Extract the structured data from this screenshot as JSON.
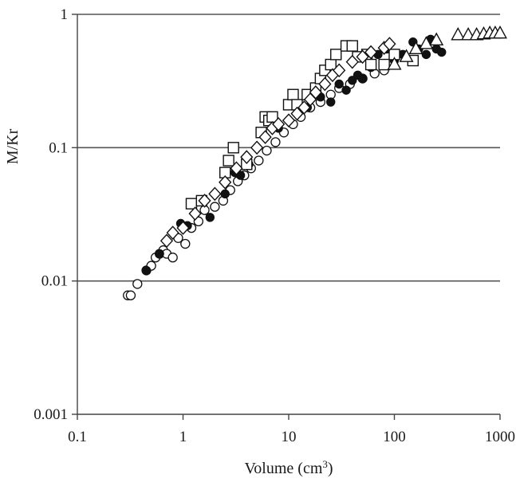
{
  "chart_data": {
    "type": "scatter",
    "title": "",
    "xlabel": "Volume (cm",
    "xlabel_sup": "3",
    "xlabel_close": ")",
    "ylabel": "M/Kr",
    "xscale": "log",
    "yscale": "log",
    "xlim": [
      0.1,
      1000
    ],
    "ylim": [
      0.001,
      1
    ],
    "grid": "horizontal major lines",
    "legend": "none",
    "xticks": [
      {
        "value": 0.1,
        "label": "0.1"
      },
      {
        "value": 1,
        "label": "1"
      },
      {
        "value": 10,
        "label": "10"
      },
      {
        "value": 100,
        "label": "100"
      },
      {
        "value": 1000,
        "label": "1000"
      }
    ],
    "yticks": [
      {
        "value": 0.001,
        "label": "0.001"
      },
      {
        "value": 0.01,
        "label": "0.01"
      },
      {
        "value": 0.1,
        "label": "0.1"
      },
      {
        "value": 1,
        "label": "1"
      }
    ],
    "series": [
      {
        "marker": "open-circle",
        "points": [
          [
            0.3,
            0.0078
          ],
          [
            0.32,
            0.0078
          ],
          [
            0.37,
            0.0095
          ],
          [
            0.45,
            0.012
          ],
          [
            0.5,
            0.013
          ],
          [
            0.55,
            0.015
          ],
          [
            0.6,
            0.016
          ],
          [
            0.65,
            0.017
          ],
          [
            0.7,
            0.016
          ],
          [
            0.8,
            0.015
          ],
          [
            0.9,
            0.021
          ],
          [
            1.05,
            0.019
          ],
          [
            1.2,
            0.025
          ],
          [
            1.4,
            0.028
          ],
          [
            1.6,
            0.034
          ],
          [
            2.0,
            0.036
          ],
          [
            2.4,
            0.04
          ],
          [
            2.8,
            0.048
          ],
          [
            3.3,
            0.056
          ],
          [
            3.8,
            0.062
          ],
          [
            4.4,
            0.07
          ],
          [
            5.2,
            0.08
          ],
          [
            6.2,
            0.095
          ],
          [
            7.5,
            0.11
          ],
          [
            9.0,
            0.13
          ],
          [
            11,
            0.15
          ],
          [
            13,
            0.17
          ],
          [
            16,
            0.2
          ],
          [
            20,
            0.22
          ],
          [
            25,
            0.25
          ],
          [
            30,
            0.28
          ],
          [
            38,
            0.3
          ],
          [
            50,
            0.33
          ],
          [
            65,
            0.36
          ],
          [
            80,
            0.38
          ]
        ]
      },
      {
        "marker": "filled-circle",
        "points": [
          [
            0.45,
            0.012
          ],
          [
            0.6,
            0.016
          ],
          [
            0.95,
            0.027
          ],
          [
            1.1,
            0.026
          ],
          [
            1.8,
            0.03
          ],
          [
            2.5,
            0.045
          ],
          [
            3.1,
            0.065
          ],
          [
            3.5,
            0.062
          ],
          [
            4.2,
            0.075
          ],
          [
            5.0,
            0.1
          ],
          [
            6.0,
            0.12
          ],
          [
            8.0,
            0.14
          ],
          [
            12,
            0.2
          ],
          [
            15,
            0.2
          ],
          [
            20,
            0.24
          ],
          [
            25,
            0.22
          ],
          [
            30,
            0.3
          ],
          [
            35,
            0.27
          ],
          [
            40,
            0.32
          ],
          [
            45,
            0.35
          ],
          [
            50,
            0.33
          ],
          [
            60,
            0.4
          ],
          [
            70,
            0.5
          ],
          [
            85,
            0.55
          ],
          [
            100,
            0.45
          ],
          [
            120,
            0.5
          ],
          [
            150,
            0.62
          ],
          [
            170,
            0.55
          ],
          [
            200,
            0.5
          ],
          [
            220,
            0.65
          ],
          [
            250,
            0.55
          ],
          [
            280,
            0.52
          ]
        ]
      },
      {
        "marker": "open-square",
        "points": [
          [
            1.2,
            0.038
          ],
          [
            1.5,
            0.04
          ],
          [
            2.5,
            0.065
          ],
          [
            2.7,
            0.08
          ],
          [
            3.0,
            0.1
          ],
          [
            4.0,
            0.075
          ],
          [
            5.5,
            0.13
          ],
          [
            6.0,
            0.17
          ],
          [
            6.5,
            0.16
          ],
          [
            7.0,
            0.17
          ],
          [
            10,
            0.21
          ],
          [
            11,
            0.25
          ],
          [
            12,
            0.21
          ],
          [
            15,
            0.25
          ],
          [
            18,
            0.28
          ],
          [
            20,
            0.33
          ],
          [
            22,
            0.38
          ],
          [
            25,
            0.42
          ],
          [
            28,
            0.5
          ],
          [
            35,
            0.58
          ],
          [
            40,
            0.58
          ],
          [
            45,
            0.48
          ],
          [
            55,
            0.5
          ],
          [
            60,
            0.42
          ],
          [
            80,
            0.42
          ],
          [
            100,
            0.5
          ],
          [
            150,
            0.45
          ]
        ]
      },
      {
        "marker": "open-diamond",
        "points": [
          [
            0.7,
            0.02
          ],
          [
            0.8,
            0.023
          ],
          [
            1.0,
            0.025
          ],
          [
            1.3,
            0.032
          ],
          [
            1.6,
            0.04
          ],
          [
            2.0,
            0.045
          ],
          [
            2.5,
            0.055
          ],
          [
            3.2,
            0.07
          ],
          [
            4.0,
            0.085
          ],
          [
            5.0,
            0.1
          ],
          [
            6.0,
            0.12
          ],
          [
            7.0,
            0.14
          ],
          [
            8.0,
            0.15
          ],
          [
            10,
            0.16
          ],
          [
            12,
            0.18
          ],
          [
            14,
            0.2
          ],
          [
            16,
            0.23
          ],
          [
            18,
            0.26
          ],
          [
            22,
            0.3
          ],
          [
            26,
            0.35
          ],
          [
            30,
            0.38
          ],
          [
            40,
            0.44
          ],
          [
            50,
            0.48
          ],
          [
            60,
            0.52
          ],
          [
            80,
            0.56
          ],
          [
            90,
            0.6
          ]
        ]
      },
      {
        "marker": "open-triangle",
        "points": [
          [
            100,
            0.42
          ],
          [
            130,
            0.48
          ],
          [
            160,
            0.55
          ],
          [
            200,
            0.6
          ],
          [
            250,
            0.64
          ],
          [
            400,
            0.7
          ],
          [
            500,
            0.7
          ],
          [
            600,
            0.7
          ],
          [
            700,
            0.71
          ],
          [
            800,
            0.72
          ],
          [
            900,
            0.72
          ],
          [
            1000,
            0.72
          ]
        ]
      }
    ]
  }
}
